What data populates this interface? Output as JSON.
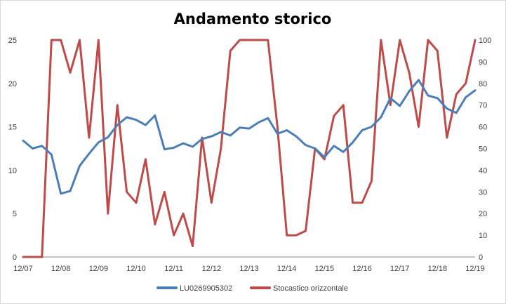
{
  "chart_data": {
    "type": "line",
    "title": "Andamento storico",
    "x_tick_labels": [
      "12/07",
      "12/08",
      "12/09",
      "12/10",
      "12/11",
      "12/12",
      "12/13",
      "12/14",
      "12/15",
      "12/16",
      "12/17",
      "12/18",
      "12/19"
    ],
    "y_left": {
      "ylim": [
        0,
        25
      ],
      "ticks": [
        0,
        5,
        10,
        15,
        20,
        25
      ]
    },
    "y_right": {
      "ylim": [
        0,
        100
      ],
      "ticks": [
        0,
        10,
        20,
        30,
        40,
        50,
        60,
        70,
        80,
        90,
        100
      ]
    },
    "grid": false,
    "legend_position": "bottom",
    "series": [
      {
        "name": "LU0269905302",
        "axis": "left",
        "color": "#4a7ebb",
        "x": [
          "12/07",
          "03/08",
          "06/08",
          "09/08",
          "12/08",
          "03/09",
          "06/09",
          "09/09",
          "12/09",
          "03/10",
          "06/10",
          "09/10",
          "12/10",
          "03/11",
          "06/11",
          "09/11",
          "12/11",
          "03/12",
          "06/12",
          "09/12",
          "12/12",
          "03/13",
          "06/13",
          "09/13",
          "12/13",
          "03/14",
          "06/14",
          "09/14",
          "12/14",
          "03/15",
          "06/15",
          "09/15",
          "12/15",
          "03/16",
          "06/16",
          "09/16",
          "12/16",
          "03/17",
          "06/17",
          "09/17",
          "12/17",
          "03/18",
          "06/18",
          "09/18",
          "12/18",
          "03/19",
          "06/19",
          "09/19",
          "12/19"
        ],
        "values": [
          13.4,
          12.5,
          12.8,
          11.8,
          7.3,
          7.6,
          10.5,
          11.9,
          13.2,
          13.8,
          15.2,
          16.1,
          15.8,
          15.2,
          16.3,
          12.4,
          12.6,
          13.1,
          12.7,
          13.6,
          13.9,
          14.4,
          14.0,
          14.9,
          14.8,
          15.5,
          16.0,
          14.2,
          14.6,
          13.9,
          12.9,
          12.5,
          11.5,
          12.8,
          12.1,
          13.2,
          14.6,
          15.0,
          16.1,
          18.3,
          17.4,
          19.1,
          20.4,
          18.6,
          18.3,
          17.1,
          16.6,
          18.4,
          19.2
        ]
      },
      {
        "name": "Stocastico orizzontale",
        "axis": "right",
        "color": "#be4b48",
        "x": [
          "12/07",
          "03/08",
          "06/08",
          "09/08",
          "12/08",
          "03/09",
          "06/09",
          "09/09",
          "12/09",
          "03/10",
          "06/10",
          "09/10",
          "12/10",
          "03/11",
          "06/11",
          "09/11",
          "12/11",
          "03/12",
          "06/12",
          "09/12",
          "12/12",
          "03/13",
          "06/13",
          "09/13",
          "12/13",
          "03/14",
          "06/14",
          "09/14",
          "12/14",
          "03/15",
          "06/15",
          "09/15",
          "12/15",
          "03/16",
          "06/16",
          "09/16",
          "12/16",
          "03/17",
          "06/17",
          "09/17",
          "12/17",
          "03/18",
          "06/18",
          "09/18",
          "12/18",
          "03/19",
          "06/19",
          "09/19",
          "12/19"
        ],
        "values": [
          0,
          0,
          0,
          100,
          100,
          85,
          100,
          55,
          100,
          20,
          70,
          30,
          25,
          45,
          15,
          30,
          10,
          20,
          5,
          55,
          25,
          50,
          95,
          100,
          100,
          100,
          100,
          60,
          10,
          10,
          12,
          50,
          45,
          65,
          70,
          25,
          25,
          35,
          100,
          70,
          100,
          85,
          60,
          100,
          95,
          55,
          75,
          80,
          100
        ]
      }
    ]
  }
}
